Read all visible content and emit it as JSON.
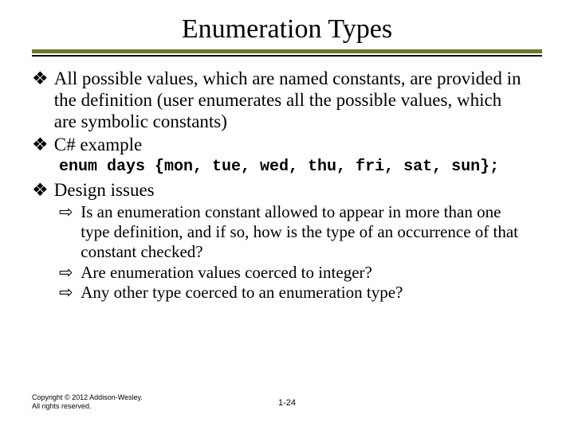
{
  "title": "Enumeration Types",
  "accent_color": "#677a2a",
  "bullets": {
    "b1": {
      "glyph": "❖",
      "text": "All possible values, which are named constants, are provided in the definition (user enumerates all the possible values, which are symbolic constants)"
    },
    "b2": {
      "glyph": "❖",
      "text": "C# example"
    },
    "b3": {
      "glyph": "❖",
      "text": "Design issues"
    }
  },
  "code": "enum days {mon, tue, wed, thu, fri, sat, sun};",
  "sub": {
    "s1": {
      "glyph": "⇨",
      "text": "Is an enumeration constant allowed to appear in more than one type definition, and if so, how is the type of an occurrence of that constant checked?"
    },
    "s2": {
      "glyph": "⇨",
      "text": "Are enumeration values coerced to integer?"
    },
    "s3": {
      "glyph": "⇨",
      "text": "Any other type coerced to an enumeration type?"
    }
  },
  "footer": {
    "copyright": "Copyright © 2012 Addison-Wesley. All rights reserved.",
    "page": "1-24"
  }
}
